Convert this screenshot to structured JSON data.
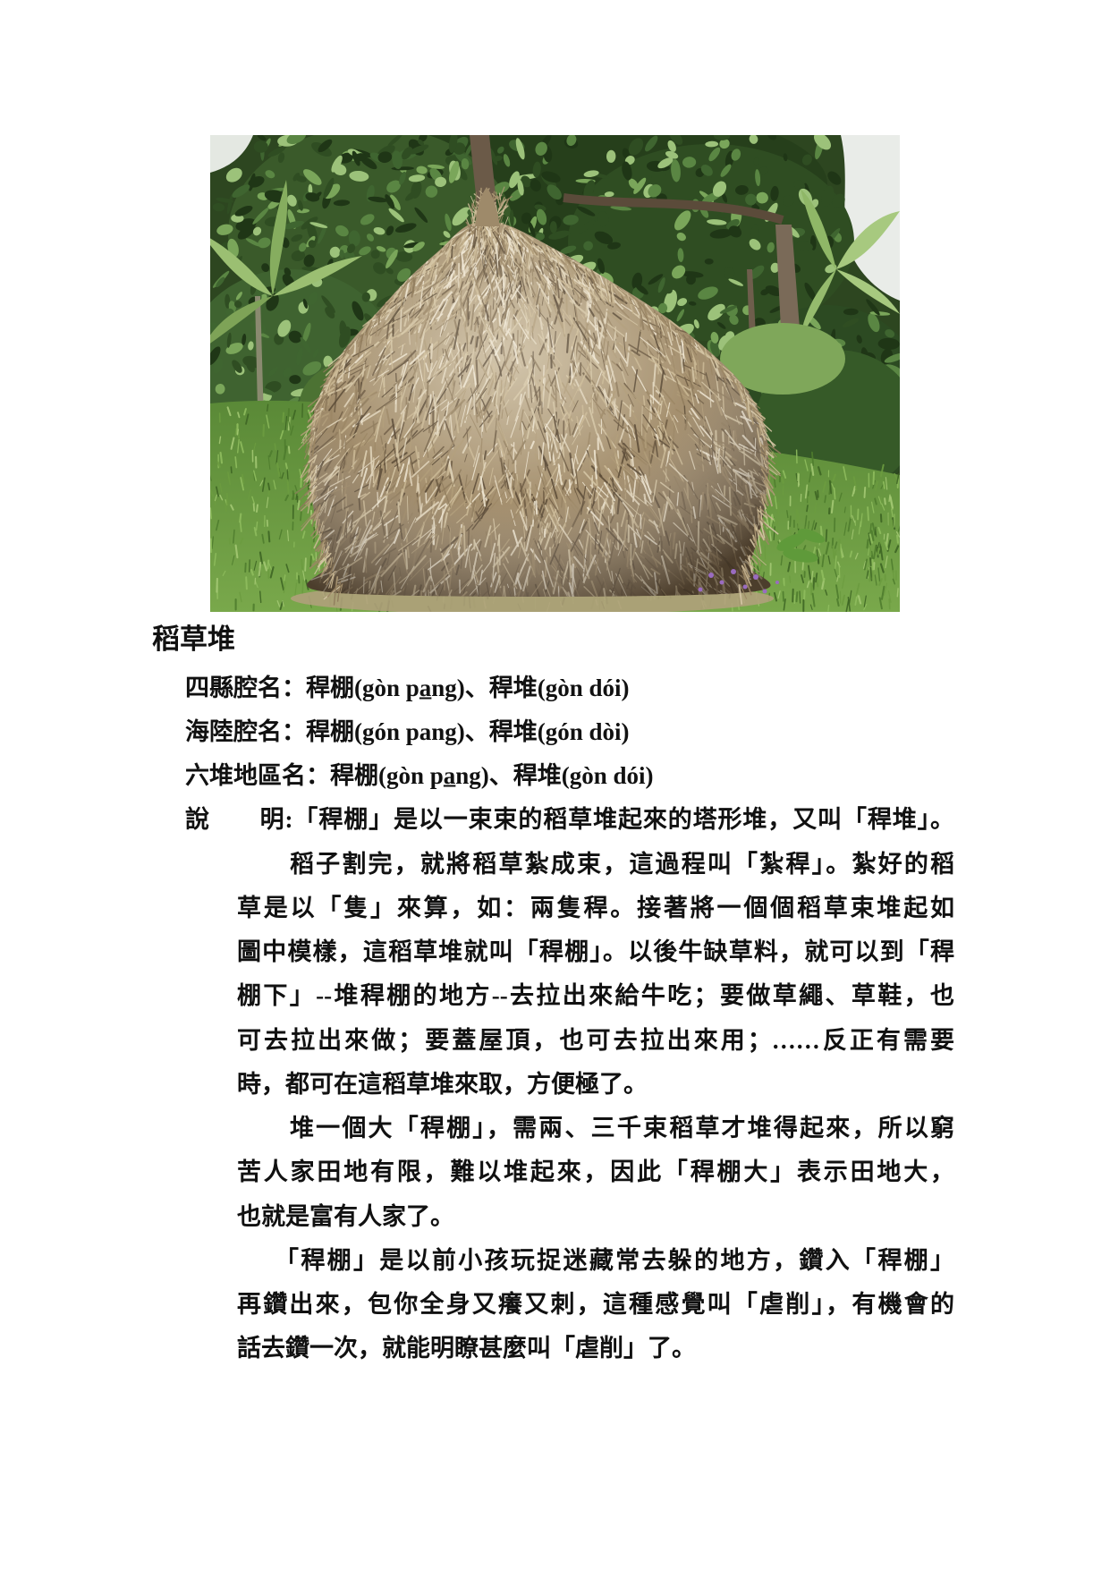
{
  "page": {
    "title": "稻草堆",
    "names": [
      "四縣腔名：稈棚(gòn pa̲ng)、稈堆(gòn dói)",
      "海陸腔名：稈棚(gón pang)、稈堆(gón dòi)",
      "六堆地區名：稈棚(gòn pa̲ng)、稈堆(gòn dói)"
    ],
    "explanation": {
      "lead": "說　　明:「稈棚」是以一束束的稻草堆起來的塔形堆，又叫「稈堆」。",
      "paragraphs": [
        [
          "稻子割完，就將稻草紮成束，這過程叫「紮稈」。紮好的稻",
          "草是以「隻」來算，如：兩隻稈。接著將一個個稻草束堆起如",
          "圖中模樣，這稻草堆就叫「稈棚」。以後牛缺草料，就可以到「稈",
          "棚下」--堆稈棚的地方--去拉出來給牛吃；要做草繩、草鞋，也",
          "可去拉出來做；要蓋屋頂，也可去拉出來用；……反正有需要",
          "時，都可在這稻草堆來取，方便極了。"
        ],
        [
          "堆一個大「稈棚」，需兩、三千束稻草才堆得起來，所以窮",
          "苦人家田地有限，難以堆起來，因此「稈棚大」表示田地大，",
          "也就是富有人家了。"
        ],
        [
          "「稈棚」是以前小孩玩捉迷藏常去躲的地方，鑽入「稈棚」",
          "再鑽出來，包你全身又癢又刺，這種感覺叫「虐削」，有機會的",
          "話去鑽一次，就能明瞭甚麼叫「虐削」了。"
        ]
      ]
    },
    "photo": {
      "subject": "haystack-photo",
      "colors": {
        "straw": "#b09c78",
        "grass": "#6c9c40",
        "foliage": "#2f4d22"
      }
    }
  }
}
